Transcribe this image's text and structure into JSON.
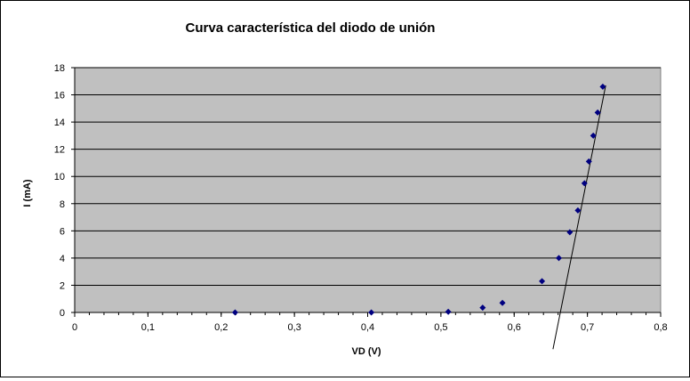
{
  "chart_data": {
    "type": "scatter",
    "title": "Curva característica del diodo de unión",
    "xlabel": "VD (V)",
    "ylabel": "I (mA)",
    "xlim": [
      0,
      0.8
    ],
    "ylim": [
      0,
      18
    ],
    "x_ticks": [
      "0",
      "0,1",
      "0,2",
      "0,3",
      "0,4",
      "0,5",
      "0,6",
      "0,7",
      "0,8"
    ],
    "y_ticks": [
      "0",
      "2",
      "4",
      "6",
      "8",
      "10",
      "12",
      "14",
      "16",
      "18"
    ],
    "grid": "horizontal",
    "plot_background": "#c0c0c0",
    "series": [
      {
        "color": "#000080",
        "marker": "diamond",
        "x": [
          0.219,
          0.405,
          0.51,
          0.557,
          0.584,
          0.638,
          0.661,
          0.676,
          0.687,
          0.696,
          0.702,
          0.708,
          0.714,
          0.721
        ],
        "y": [
          0.0,
          0.0,
          0.05,
          0.35,
          0.7,
          2.3,
          4.0,
          5.9,
          7.5,
          9.5,
          11.1,
          13.0,
          14.7,
          16.6
        ]
      }
    ],
    "trendline": {
      "type": "linear",
      "color": "#000000",
      "x": [
        0.653,
        0.725
      ],
      "y": [
        -2.7,
        16.7
      ]
    }
  }
}
